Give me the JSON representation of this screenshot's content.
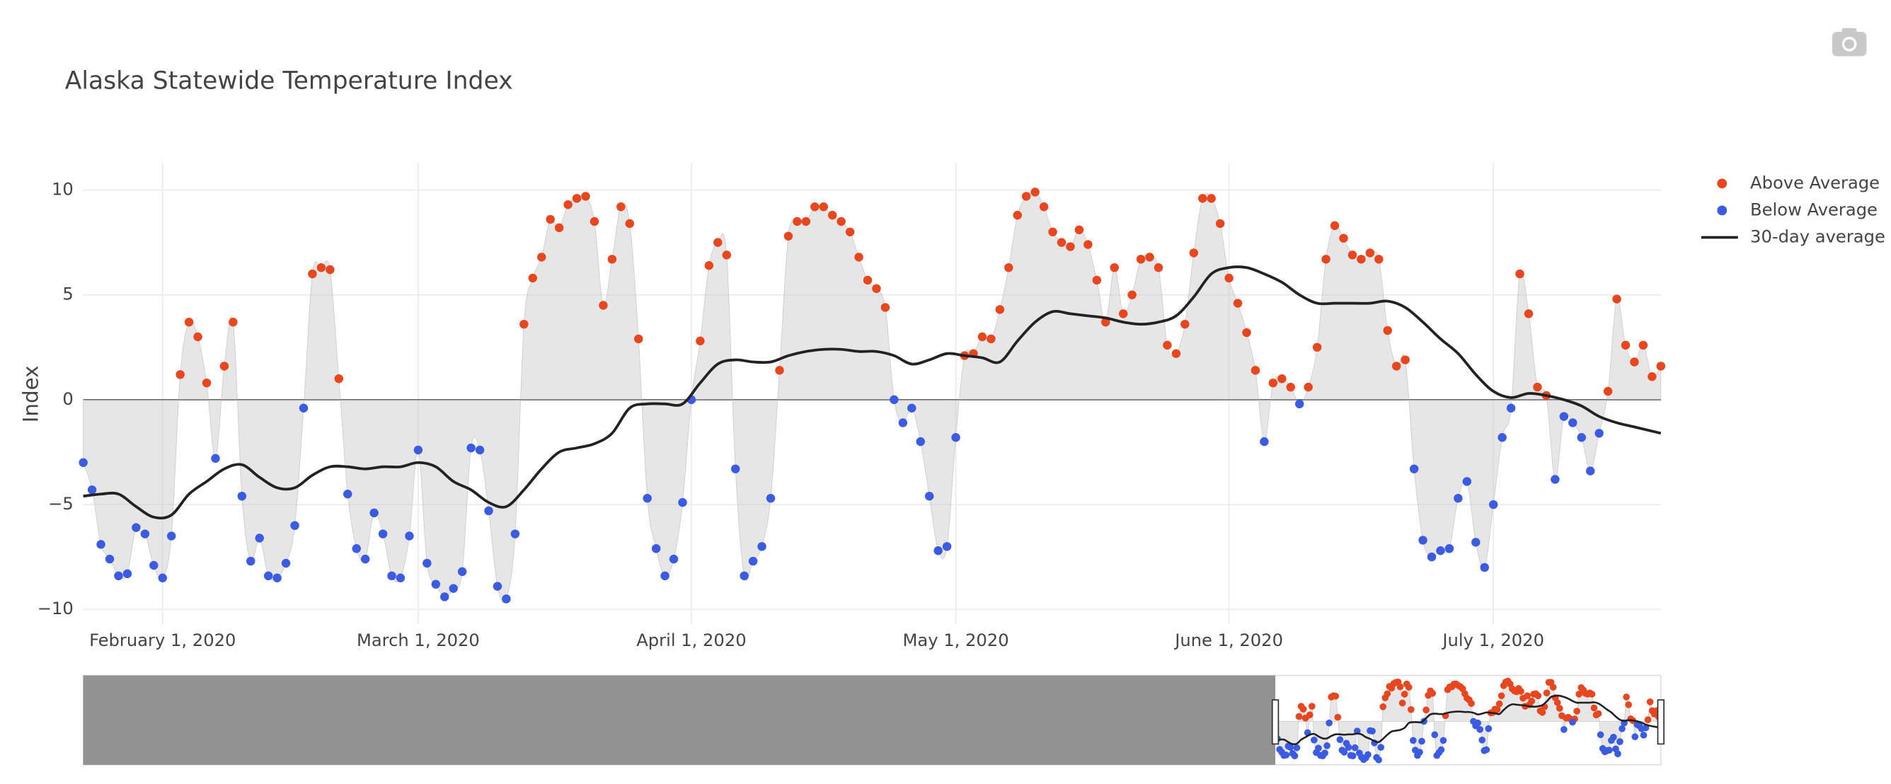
{
  "chart_data": {
    "type": "scatter",
    "title": "Alaska Statewide Temperature Index",
    "y_label": "Index",
    "xlim": [
      "2020-01-23",
      "2020-07-20"
    ],
    "xticks": [
      {
        "value": "2020-02-01",
        "label": "February 1, 2020"
      },
      {
        "value": "2020-03-01",
        "label": "March 1, 2020"
      },
      {
        "value": "2020-04-01",
        "label": "April 1, 2020"
      },
      {
        "value": "2020-05-01",
        "label": "May 1, 2020"
      },
      {
        "value": "2020-06-01",
        "label": "June 1, 2020"
      },
      {
        "value": "2020-07-01",
        "label": "July 1, 2020"
      }
    ],
    "ylim": [
      -10.7,
      11.3
    ],
    "yticks": [
      {
        "value": -10,
        "label": "−10"
      },
      {
        "value": -5,
        "label": "−5"
      },
      0,
      5,
      10
    ],
    "grid": true,
    "legend": "right",
    "range_slider": true,
    "x": [
      "2020-01-23",
      "2020-01-24",
      "2020-01-25",
      "2020-01-26",
      "2020-01-27",
      "2020-01-28",
      "2020-01-29",
      "2020-01-30",
      "2020-01-31",
      "2020-02-01",
      "2020-02-02",
      "2020-02-03",
      "2020-02-04",
      "2020-02-05",
      "2020-02-06",
      "2020-02-07",
      "2020-02-08",
      "2020-02-09",
      "2020-02-10",
      "2020-02-11",
      "2020-02-12",
      "2020-02-13",
      "2020-02-14",
      "2020-02-15",
      "2020-02-16",
      "2020-02-17",
      "2020-02-18",
      "2020-02-19",
      "2020-02-20",
      "2020-02-21",
      "2020-02-22",
      "2020-02-23",
      "2020-02-24",
      "2020-02-25",
      "2020-02-26",
      "2020-02-27",
      "2020-02-28",
      "2020-02-29",
      "2020-03-01",
      "2020-03-02",
      "2020-03-03",
      "2020-03-04",
      "2020-03-05",
      "2020-03-06",
      "2020-03-07",
      "2020-03-08",
      "2020-03-09",
      "2020-03-10",
      "2020-03-11",
      "2020-03-12",
      "2020-03-13",
      "2020-03-14",
      "2020-03-15",
      "2020-03-16",
      "2020-03-17",
      "2020-03-18",
      "2020-03-19",
      "2020-03-20",
      "2020-03-21",
      "2020-03-22",
      "2020-03-23",
      "2020-03-24",
      "2020-03-25",
      "2020-03-26",
      "2020-03-27",
      "2020-03-28",
      "2020-03-29",
      "2020-03-30",
      "2020-03-31",
      "2020-04-01",
      "2020-04-02",
      "2020-04-03",
      "2020-04-04",
      "2020-04-05",
      "2020-04-06",
      "2020-04-07",
      "2020-04-08",
      "2020-04-09",
      "2020-04-10",
      "2020-04-11",
      "2020-04-12",
      "2020-04-13",
      "2020-04-14",
      "2020-04-15",
      "2020-04-16",
      "2020-04-17",
      "2020-04-18",
      "2020-04-19",
      "2020-04-20",
      "2020-04-21",
      "2020-04-22",
      "2020-04-23",
      "2020-04-24",
      "2020-04-25",
      "2020-04-26",
      "2020-04-27",
      "2020-04-28",
      "2020-04-29",
      "2020-04-30",
      "2020-05-01",
      "2020-05-02",
      "2020-05-03",
      "2020-05-04",
      "2020-05-05",
      "2020-05-06",
      "2020-05-07",
      "2020-05-08",
      "2020-05-09",
      "2020-05-10",
      "2020-05-11",
      "2020-05-12",
      "2020-05-13",
      "2020-05-14",
      "2020-05-15",
      "2020-05-16",
      "2020-05-17",
      "2020-05-18",
      "2020-05-19",
      "2020-05-20",
      "2020-05-21",
      "2020-05-22",
      "2020-05-23",
      "2020-05-24",
      "2020-05-25",
      "2020-05-26",
      "2020-05-27",
      "2020-05-28",
      "2020-05-29",
      "2020-05-30",
      "2020-05-31",
      "2020-06-01",
      "2020-06-02",
      "2020-06-03",
      "2020-06-04",
      "2020-06-05",
      "2020-06-06",
      "2020-06-07",
      "2020-06-08",
      "2020-06-09",
      "2020-06-10",
      "2020-06-11",
      "2020-06-12",
      "2020-06-13",
      "2020-06-14",
      "2020-06-15",
      "2020-06-16",
      "2020-06-17",
      "2020-06-18",
      "2020-06-19",
      "2020-06-20",
      "2020-06-21",
      "2020-06-22",
      "2020-06-23",
      "2020-06-24",
      "2020-06-25",
      "2020-06-26",
      "2020-06-27",
      "2020-06-28",
      "2020-06-29",
      "2020-06-30",
      "2020-07-01",
      "2020-07-02",
      "2020-07-03",
      "2020-07-04",
      "2020-07-05",
      "2020-07-06",
      "2020-07-07",
      "2020-07-08",
      "2020-07-09",
      "2020-07-10",
      "2020-07-11",
      "2020-07-12",
      "2020-07-13",
      "2020-07-14",
      "2020-07-15",
      "2020-07-16",
      "2020-07-17",
      "2020-07-18",
      "2020-07-19",
      "2020-07-20"
    ],
    "series": [
      {
        "name": "Above Average",
        "color": "#e8461e",
        "mode": "markers",
        "values": [
          null,
          null,
          null,
          null,
          null,
          null,
          null,
          null,
          null,
          null,
          null,
          1.2,
          3.7,
          3.0,
          0.8,
          null,
          1.6,
          3.7,
          null,
          null,
          null,
          null,
          null,
          null,
          null,
          null,
          6.0,
          6.3,
          6.2,
          1.0,
          null,
          null,
          null,
          null,
          null,
          null,
          null,
          null,
          null,
          null,
          null,
          null,
          null,
          null,
          null,
          null,
          null,
          null,
          null,
          null,
          3.6,
          5.8,
          6.8,
          8.6,
          8.2,
          9.3,
          9.6,
          9.7,
          8.5,
          4.5,
          6.7,
          9.2,
          8.4,
          2.9,
          null,
          null,
          null,
          null,
          null,
          null,
          2.8,
          6.4,
          7.5,
          6.9,
          null,
          null,
          null,
          null,
          null,
          1.4,
          7.8,
          8.5,
          8.5,
          9.2,
          9.2,
          8.8,
          8.5,
          8.0,
          6.8,
          5.7,
          5.3,
          4.4,
          null,
          null,
          null,
          null,
          null,
          null,
          null,
          null,
          2.1,
          2.2,
          3.0,
          2.9,
          4.3,
          6.3,
          8.8,
          9.7,
          9.9,
          9.2,
          8.0,
          7.5,
          7.3,
          8.1,
          7.4,
          5.7,
          3.7,
          6.3,
          4.1,
          5.0,
          6.7,
          6.8,
          6.3,
          2.6,
          2.2,
          3.6,
          7.0,
          9.6,
          9.6,
          8.4,
          5.8,
          4.6,
          3.2,
          1.4,
          null,
          0.8,
          1.0,
          0.6,
          null,
          0.6,
          2.5,
          6.7,
          8.3,
          7.7,
          6.9,
          6.7,
          7.0,
          6.7,
          3.3,
          1.6,
          1.9,
          null,
          null,
          null,
          null,
          null,
          null,
          null,
          null,
          null,
          null,
          null,
          null,
          6.0,
          4.1,
          0.6,
          0.2,
          null,
          null,
          null,
          null,
          null,
          null,
          0.4,
          4.8,
          2.6,
          1.8,
          2.6,
          1.1,
          1.6
        ]
      },
      {
        "name": "Below Average",
        "color": "#3b5be0",
        "mode": "markers",
        "values": [
          -3.0,
          -4.3,
          -6.9,
          -7.6,
          -8.4,
          -8.3,
          -6.1,
          -6.4,
          -7.9,
          -8.5,
          -6.5,
          null,
          null,
          null,
          null,
          -2.8,
          null,
          null,
          -4.6,
          -7.7,
          -6.6,
          -8.4,
          -8.5,
          -7.8,
          -6.0,
          -0.4,
          null,
          null,
          null,
          null,
          -4.5,
          -7.1,
          -7.6,
          -5.4,
          -6.4,
          -8.4,
          -8.5,
          -6.5,
          -2.4,
          -7.8,
          -8.8,
          -9.4,
          -9.0,
          -8.2,
          -2.3,
          -2.4,
          -5.3,
          -8.9,
          -9.5,
          -6.4,
          null,
          null,
          null,
          null,
          null,
          null,
          null,
          null,
          null,
          null,
          null,
          null,
          null,
          null,
          -4.7,
          -7.1,
          -8.4,
          -7.6,
          -4.9,
          0,
          null,
          null,
          null,
          null,
          -3.3,
          -8.4,
          -7.7,
          -7.0,
          -4.7,
          null,
          null,
          null,
          null,
          null,
          null,
          null,
          null,
          null,
          null,
          null,
          null,
          null,
          0,
          -1.1,
          -0.4,
          -2.0,
          -4.6,
          -7.2,
          -7.0,
          -1.8,
          null,
          null,
          null,
          null,
          null,
          null,
          null,
          null,
          null,
          null,
          null,
          null,
          null,
          null,
          null,
          null,
          null,
          null,
          null,
          null,
          null,
          null,
          null,
          null,
          null,
          null,
          null,
          null,
          null,
          null,
          null,
          null,
          null,
          null,
          -2.0,
          null,
          null,
          null,
          -0.2,
          null,
          null,
          null,
          null,
          null,
          null,
          null,
          null,
          null,
          null,
          null,
          null,
          -3.3,
          -6.7,
          -7.5,
          -7.2,
          -7.1,
          -4.7,
          -3.9,
          -6.8,
          -8.0,
          -5.0,
          -1.8,
          -0.4,
          null,
          null,
          null,
          null,
          -3.8,
          -0.8,
          -1.1,
          -1.8,
          -3.4,
          -1.6,
          null,
          null,
          null,
          null,
          null,
          null,
          null
        ]
      },
      {
        "name": "30-day average",
        "color": "#222222",
        "mode": "lines",
        "x": [
          "2020-01-23",
          "2020-01-25",
          "2020-01-27",
          "2020-01-29",
          "2020-01-31",
          "2020-02-02",
          "2020-02-04",
          "2020-02-06",
          "2020-02-08",
          "2020-02-10",
          "2020-02-12",
          "2020-02-14",
          "2020-02-16",
          "2020-02-18",
          "2020-02-20",
          "2020-02-22",
          "2020-02-24",
          "2020-02-26",
          "2020-02-28",
          "2020-03-01",
          "2020-03-03",
          "2020-03-05",
          "2020-03-07",
          "2020-03-09",
          "2020-03-11",
          "2020-03-13",
          "2020-03-15",
          "2020-03-17",
          "2020-03-19",
          "2020-03-21",
          "2020-03-23",
          "2020-03-25",
          "2020-03-27",
          "2020-03-29",
          "2020-03-31",
          "2020-04-02",
          "2020-04-04",
          "2020-04-06",
          "2020-04-08",
          "2020-04-10",
          "2020-04-12",
          "2020-04-14",
          "2020-04-16",
          "2020-04-18",
          "2020-04-20",
          "2020-04-22",
          "2020-04-24",
          "2020-04-26",
          "2020-04-28",
          "2020-04-30",
          "2020-05-02",
          "2020-05-04",
          "2020-05-06",
          "2020-05-08",
          "2020-05-10",
          "2020-05-12",
          "2020-05-14",
          "2020-05-16",
          "2020-05-18",
          "2020-05-20",
          "2020-05-22",
          "2020-05-24",
          "2020-05-26",
          "2020-05-28",
          "2020-05-30",
          "2020-06-01",
          "2020-06-03",
          "2020-06-05",
          "2020-06-07",
          "2020-06-09",
          "2020-06-11",
          "2020-06-13",
          "2020-06-15",
          "2020-06-17",
          "2020-06-19",
          "2020-06-21",
          "2020-06-23",
          "2020-06-25",
          "2020-06-27",
          "2020-06-29",
          "2020-07-01",
          "2020-07-03",
          "2020-07-05",
          "2020-07-07",
          "2020-07-09",
          "2020-07-11",
          "2020-07-13",
          "2020-07-15",
          "2020-07-17",
          "2020-07-19",
          "2020-07-20"
        ],
        "values": [
          -4.6,
          -4.5,
          -4.5,
          -5.1,
          -5.6,
          -5.5,
          -4.5,
          -3.9,
          -3.3,
          -3.1,
          -3.7,
          -4.2,
          -4.2,
          -3.6,
          -3.2,
          -3.2,
          -3.3,
          -3.2,
          -3.2,
          -3.0,
          -3.2,
          -3.9,
          -4.3,
          -4.9,
          -5.1,
          -4.3,
          -3.3,
          -2.5,
          -2.3,
          -2.1,
          -1.6,
          -0.4,
          -0.2,
          -0.2,
          -0.2,
          0.8,
          1.7,
          1.9,
          1.8,
          1.8,
          2.1,
          2.3,
          2.4,
          2.4,
          2.3,
          2.3,
          2.1,
          1.7,
          1.9,
          2.2,
          2.1,
          2.0,
          1.8,
          2.8,
          3.7,
          4.2,
          4.1,
          4.0,
          3.9,
          3.7,
          3.6,
          3.7,
          4.0,
          4.9,
          6.0,
          6.3,
          6.3,
          6.0,
          5.6,
          5.0,
          4.6,
          4.6,
          4.6,
          4.6,
          4.7,
          4.4,
          3.7,
          2.9,
          2.2,
          1.2,
          0.4,
          0.1,
          0.3,
          0.2,
          0.0,
          -0.3,
          -0.8,
          -1.1,
          -1.3,
          -1.5,
          -1.6
        ]
      }
    ]
  }
}
